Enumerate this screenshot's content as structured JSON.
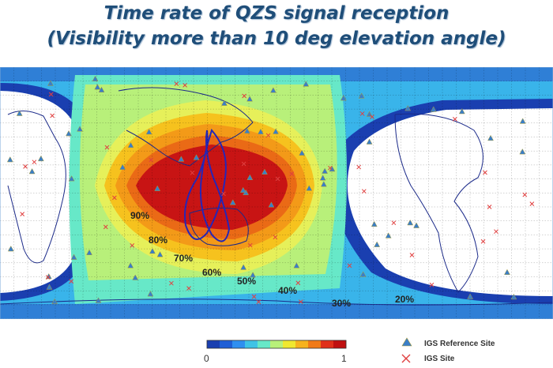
{
  "title": {
    "line1": "Time rate of QZS signal reception",
    "line2": "(Visibility more than 10 deg elevation angle)"
  },
  "contour_labels": [
    {
      "text": "90%"
    },
    {
      "text": "80%"
    },
    {
      "text": "70%"
    },
    {
      "text": "60%"
    },
    {
      "text": "50%"
    },
    {
      "text": "40%"
    },
    {
      "text": "30%"
    },
    {
      "text": "20%"
    }
  ],
  "colorbar": {
    "min_label": "0",
    "max_label": "1",
    "colors": [
      "#1a3fb0",
      "#1f5fd6",
      "#2f8ff0",
      "#3fc3e6",
      "#67e8c8",
      "#b8f07a",
      "#f0e830",
      "#f6b21e",
      "#f07a18",
      "#e0301a",
      "#c01010"
    ]
  },
  "legend": {
    "reference_site": "IGS Reference Site",
    "igs_site": "IGS Site"
  },
  "colors": {
    "title": "#1f4e79",
    "reference_marker": "#3a7ec8",
    "igs_marker": "#e04040"
  }
}
